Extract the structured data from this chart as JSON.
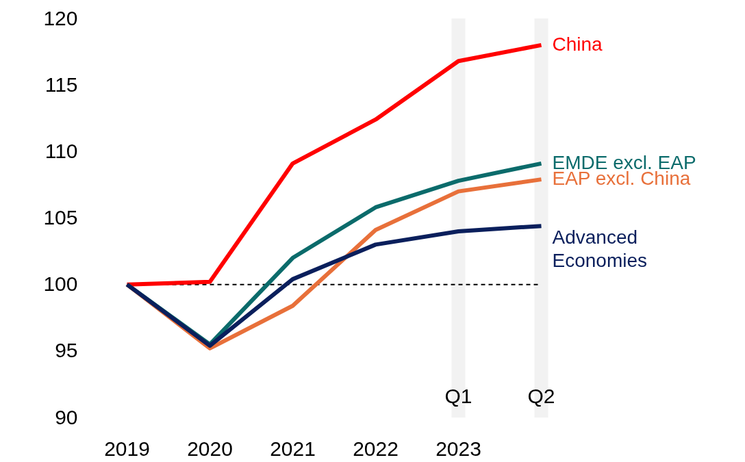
{
  "chart_data": {
    "type": "line",
    "categories": [
      "2019",
      "2020",
      "2021",
      "2022",
      "Q1",
      "Q2"
    ],
    "series": [
      {
        "name": "China",
        "color": "#ff0000",
        "values": [
          100,
          100.2,
          109.1,
          112.4,
          116.8,
          118.0
        ]
      },
      {
        "name": "EMDE excl. EAP",
        "color": "#0b6b6b",
        "values": [
          100,
          95.5,
          102.0,
          105.8,
          107.8,
          109.1
        ]
      },
      {
        "name": "EAP excl. China",
        "color": "#e8703a",
        "values": [
          100,
          95.2,
          98.4,
          104.1,
          107.0,
          107.9
        ]
      },
      {
        "name": "Advanced Economies",
        "color": "#0a1f5c",
        "values": [
          100,
          95.4,
          100.4,
          103.0,
          104.0,
          104.4
        ]
      }
    ],
    "ylim": [
      90,
      120
    ],
    "yticks": [
      90,
      95,
      100,
      105,
      110,
      115,
      120
    ],
    "ref_lines": [
      {
        "axis": "y",
        "value": 100,
        "color": "#000000",
        "line_style": "dashed"
      }
    ],
    "bands": [
      {
        "axis": "x",
        "from": "Q1",
        "to": "Q1",
        "color": "#f2f2f2"
      },
      {
        "axis": "x",
        "from": "Q2",
        "to": "Q2",
        "color": "#f2f2f2"
      }
    ],
    "annotations": [
      "2023"
    ],
    "grid": false,
    "legend": false,
    "marker": "none",
    "line_style": "solid"
  }
}
